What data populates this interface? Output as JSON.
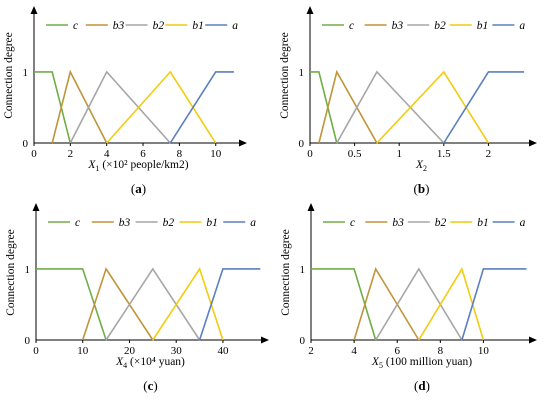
{
  "colors": {
    "c": "#70AD47",
    "b3": "#C09438",
    "b2": "#A6A6A6",
    "b1": "#F2CC0D",
    "a": "#5B7FC0"
  },
  "chart_data": [
    {
      "type": "line",
      "panel_label": "(a)",
      "ylabel": "Connection degree",
      "xlabel_main": "X",
      "xlabel_sub": "1",
      "xlabel_rest": " (×10² people/km2)",
      "xlim": [
        0,
        11.5
      ],
      "ylim": [
        0,
        1.9
      ],
      "xticks": [
        0,
        2,
        4,
        6,
        8,
        10
      ],
      "yticks": [
        0,
        1
      ],
      "legend": [
        "c",
        "b3",
        "b2",
        "b1",
        "a"
      ],
      "series": [
        {
          "name": "c",
          "x": [
            0,
            1,
            2
          ],
          "y": [
            1,
            1,
            0
          ]
        },
        {
          "name": "b3",
          "x": [
            1,
            2,
            4
          ],
          "y": [
            0,
            1,
            0
          ]
        },
        {
          "name": "b2",
          "x": [
            2,
            4,
            7.5
          ],
          "y": [
            0,
            1,
            0
          ]
        },
        {
          "name": "b1",
          "x": [
            4,
            7.5,
            10
          ],
          "y": [
            0,
            1,
            0
          ]
        },
        {
          "name": "a",
          "x": [
            7.5,
            10,
            11
          ],
          "y": [
            0,
            1,
            1
          ]
        }
      ]
    },
    {
      "type": "line",
      "panel_label": "(b)",
      "ylabel": "Connection degree",
      "xlabel_main": "X",
      "xlabel_sub": "2",
      "xlabel_rest": "",
      "xlim": [
        0,
        2.5
      ],
      "ylim": [
        0,
        1.9
      ],
      "xticks": [
        0,
        0.5,
        1,
        1.5,
        2
      ],
      "yticks": [
        0,
        1
      ],
      "legend": [
        "c",
        "b3",
        "b2",
        "b1",
        "a"
      ],
      "series": [
        {
          "name": "c",
          "x": [
            0,
            0.1,
            0.3
          ],
          "y": [
            1,
            1,
            0
          ]
        },
        {
          "name": "b3",
          "x": [
            0.1,
            0.3,
            0.75
          ],
          "y": [
            0,
            1,
            0
          ]
        },
        {
          "name": "b2",
          "x": [
            0.3,
            0.75,
            1.5
          ],
          "y": [
            0,
            1,
            0
          ]
        },
        {
          "name": "b1",
          "x": [
            0.75,
            1.5,
            2
          ],
          "y": [
            0,
            1,
            0
          ]
        },
        {
          "name": "a",
          "x": [
            1.5,
            2,
            2.4
          ],
          "y": [
            0,
            1,
            1
          ]
        }
      ]
    },
    {
      "type": "line",
      "panel_label": "(c)",
      "ylabel": "Connection degree",
      "xlabel_main": "X",
      "xlabel_sub": "4",
      "xlabel_rest": " (×10⁴ yuan)",
      "xlim": [
        0,
        49
      ],
      "ylim": [
        0,
        1.9
      ],
      "xticks": [
        0,
        10,
        20,
        30,
        40
      ],
      "yticks": [
        0,
        1
      ],
      "legend": [
        "c",
        "b3",
        "b2",
        "b1",
        "a"
      ],
      "series": [
        {
          "name": "c",
          "x": [
            0,
            10,
            15
          ],
          "y": [
            1,
            1,
            0
          ]
        },
        {
          "name": "b3",
          "x": [
            10,
            15,
            25
          ],
          "y": [
            0,
            1,
            0
          ]
        },
        {
          "name": "b2",
          "x": [
            15,
            25,
            35
          ],
          "y": [
            0,
            1,
            0
          ]
        },
        {
          "name": "b1",
          "x": [
            25,
            35,
            40
          ],
          "y": [
            0,
            1,
            0
          ]
        },
        {
          "name": "a",
          "x": [
            35,
            40,
            48
          ],
          "y": [
            0,
            1,
            1
          ]
        }
      ]
    },
    {
      "type": "line",
      "panel_label": "(d)",
      "ylabel": "Connection degree",
      "xlabel_main": "X",
      "xlabel_sub": "5",
      "xlabel_rest": " (100 million yuan)",
      "xlim": [
        2,
        12.3
      ],
      "ylim": [
        0,
        1.9
      ],
      "xticks": [
        2,
        4,
        6,
        8,
        10
      ],
      "yticks": [
        0,
        1
      ],
      "legend": [
        "c",
        "b3",
        "b2",
        "b1",
        "a"
      ],
      "series": [
        {
          "name": "c",
          "x": [
            2,
            4,
            5
          ],
          "y": [
            1,
            1,
            0
          ]
        },
        {
          "name": "b3",
          "x": [
            4,
            5,
            7
          ],
          "y": [
            0,
            1,
            0
          ]
        },
        {
          "name": "b2",
          "x": [
            5,
            7,
            9
          ],
          "y": [
            0,
            1,
            0
          ]
        },
        {
          "name": "b1",
          "x": [
            7,
            9,
            10
          ],
          "y": [
            0,
            1,
            0
          ]
        },
        {
          "name": "a",
          "x": [
            9,
            10,
            12
          ],
          "y": [
            0,
            1,
            1
          ]
        }
      ]
    }
  ]
}
